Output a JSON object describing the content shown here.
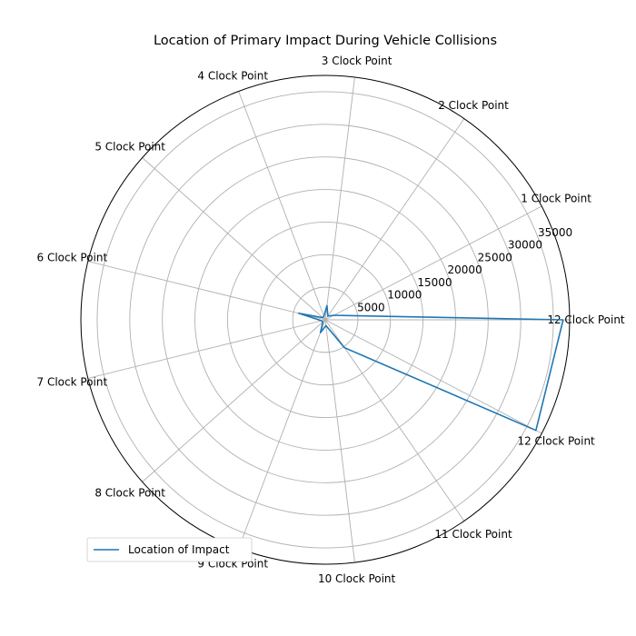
{
  "chart_data": {
    "type": "radar",
    "title": "Location of Primary Impact During Vehicle Collisions",
    "categories": [
      "12 Clock Point",
      "1 Clock Point",
      "2 Clock Point",
      "3 Clock Point",
      "4 Clock Point",
      "5 Clock Point",
      "6 Clock Point",
      "7 Clock Point",
      "8 Clock Point",
      "9 Clock Point",
      "10 Clock Point",
      "11 Clock Point",
      "12 Clock Point"
    ],
    "r_ticks": [
      "5000",
      "10000",
      "15000",
      "20000",
      "25000",
      "30000",
      "35000"
    ],
    "r_tick_values": [
      5000,
      10000,
      15000,
      20000,
      25000,
      30000,
      35000
    ],
    "r_max": 37500,
    "series": [
      {
        "name": "Location of Impact",
        "color": "#1f77b4",
        "values": [
          36500,
          1500,
          700,
          2200,
          600,
          500,
          4200,
          600,
          500,
          2100,
          900,
          5200,
          36500
        ]
      }
    ],
    "legend": {
      "position": "lower-left"
    },
    "grid": true
  }
}
